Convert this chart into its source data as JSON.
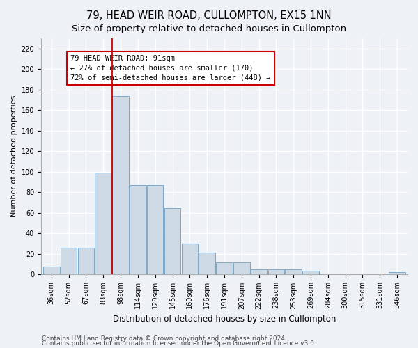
{
  "title": "79, HEAD WEIR ROAD, CULLOMPTON, EX15 1NN",
  "subtitle": "Size of property relative to detached houses in Cullompton",
  "xlabel": "Distribution of detached houses by size in Cullompton",
  "ylabel": "Number of detached properties",
  "categories": [
    "36sqm",
    "52sqm",
    "67sqm",
    "83sqm",
    "98sqm",
    "114sqm",
    "129sqm",
    "145sqm",
    "160sqm",
    "176sqm",
    "191sqm",
    "207sqm",
    "222sqm",
    "238sqm",
    "253sqm",
    "269sqm",
    "284sqm",
    "300sqm",
    "315sqm",
    "331sqm",
    "346sqm"
  ],
  "bar_heights": [
    8,
    26,
    26,
    99,
    174,
    87,
    87,
    65,
    30,
    21,
    12,
    12,
    5,
    5,
    5,
    4,
    0,
    0,
    0,
    0,
    2
  ],
  "bar_color": "#cdd9e5",
  "bar_edge_color": "#7aaac8",
  "vline_color": "#cc0000",
  "vline_x_index": 3.5,
  "annotation_text_line1": "79 HEAD WEIR ROAD: 91sqm",
  "annotation_text_line2": "← 27% of detached houses are smaller (170)",
  "annotation_text_line3": "72% of semi-detached houses are larger (448) →",
  "annotation_box_facecolor": "#ffffff",
  "annotation_box_edgecolor": "#cc0000",
  "ylim_max": 230,
  "yticks": [
    0,
    20,
    40,
    60,
    80,
    100,
    120,
    140,
    160,
    180,
    200,
    220
  ],
  "footer1": "Contains HM Land Registry data © Crown copyright and database right 2024.",
  "footer2": "Contains public sector information licensed under the Open Government Licence v3.0.",
  "bg_color": "#eef2f6",
  "grid_color": "#ffffff",
  "title_fontsize": 10.5,
  "ylabel_fontsize": 8,
  "xlabel_fontsize": 8.5,
  "tick_fontsize": 7,
  "annot_fontsize": 7.5,
  "footer_fontsize": 6.5
}
